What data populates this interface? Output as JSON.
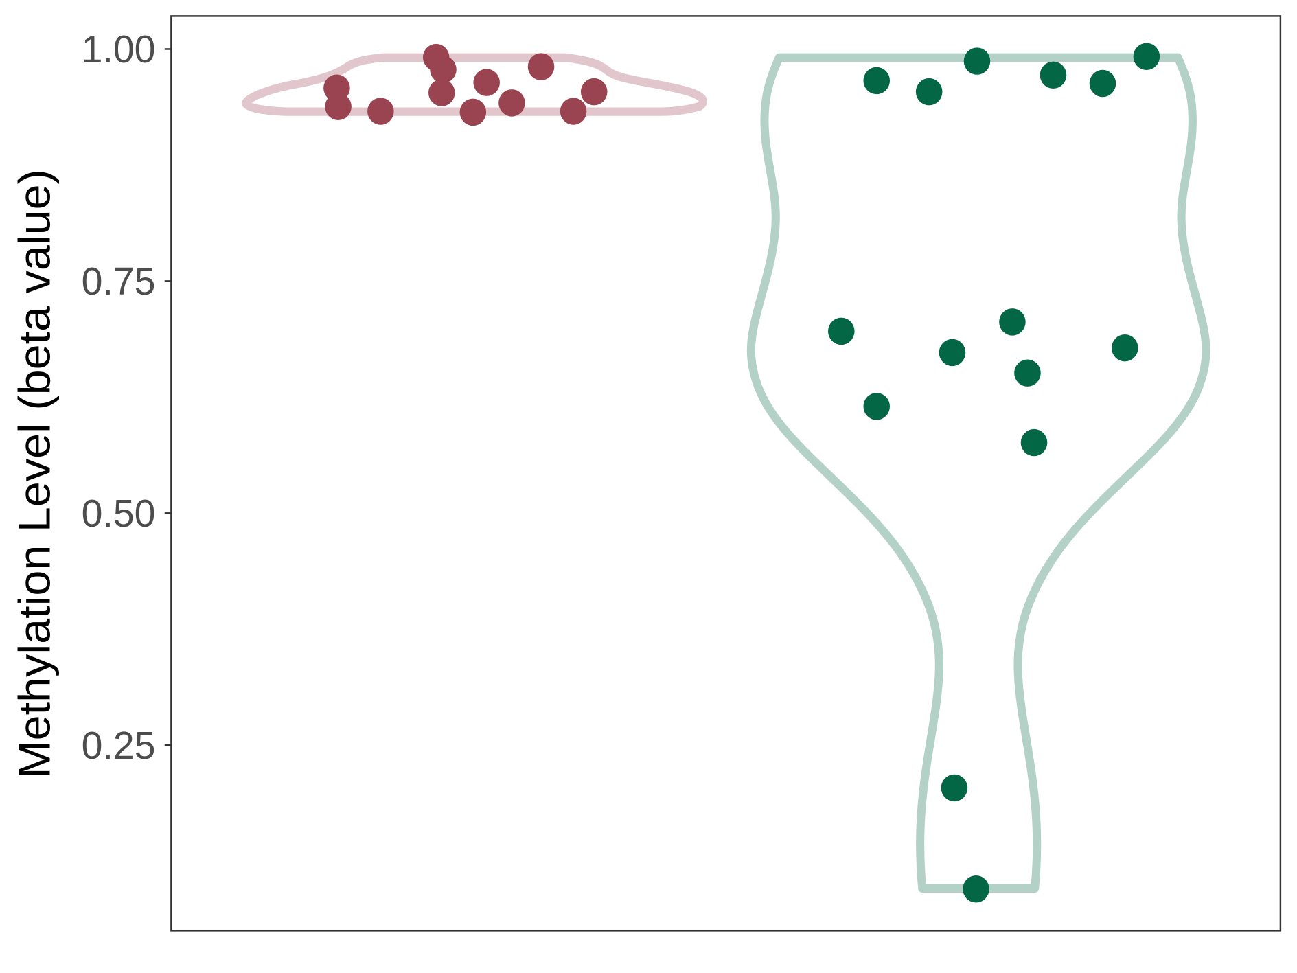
{
  "chart_data": {
    "type": "violin",
    "title": "",
    "xlabel": "",
    "ylabel": "Methylation Level (beta value)",
    "ylim": [
      0.05,
      1.036
    ],
    "yticks": [
      0.25,
      0.5,
      0.75,
      1.0
    ],
    "ytick_labels": [
      "0.25",
      "0.50",
      "0.75",
      "1.00"
    ],
    "grid": false,
    "legend": "none",
    "series": [
      {
        "category_index": 1,
        "fill_color": "#9b4451",
        "outline_color": "#e1c6cc",
        "points": [
          {
            "x": 0.925,
            "y": 0.991
          },
          {
            "x": 0.939,
            "y": 0.978
          },
          {
            "x": 0.728,
            "y": 0.958
          },
          {
            "x": 0.731,
            "y": 0.938
          },
          {
            "x": 0.815,
            "y": 0.933
          },
          {
            "x": 0.936,
            "y": 0.953
          },
          {
            "x": 1.025,
            "y": 0.964
          },
          {
            "x": 1.133,
            "y": 0.981
          },
          {
            "x": 1.075,
            "y": 0.942
          },
          {
            "x": 0.998,
            "y": 0.932
          },
          {
            "x": 1.197,
            "y": 0.933
          },
          {
            "x": 1.238,
            "y": 0.954
          }
        ]
      },
      {
        "category_index": 2,
        "fill_color": "#036644",
        "outline_color": "#b3d1c7",
        "points": [
          {
            "x": 1.798,
            "y": 0.966
          },
          {
            "x": 1.902,
            "y": 0.954
          },
          {
            "x": 1.997,
            "y": 0.987
          },
          {
            "x": 2.148,
            "y": 0.972
          },
          {
            "x": 2.246,
            "y": 0.963
          },
          {
            "x": 2.333,
            "y": 0.992
          },
          {
            "x": 1.728,
            "y": 0.696
          },
          {
            "x": 1.948,
            "y": 0.673
          },
          {
            "x": 2.067,
            "y": 0.706
          },
          {
            "x": 2.097,
            "y": 0.651
          },
          {
            "x": 2.29,
            "y": 0.678
          },
          {
            "x": 1.798,
            "y": 0.615
          },
          {
            "x": 2.11,
            "y": 0.576
          },
          {
            "x": 1.952,
            "y": 0.204
          },
          {
            "x": 1.995,
            "y": 0.095
          }
        ]
      }
    ]
  }
}
